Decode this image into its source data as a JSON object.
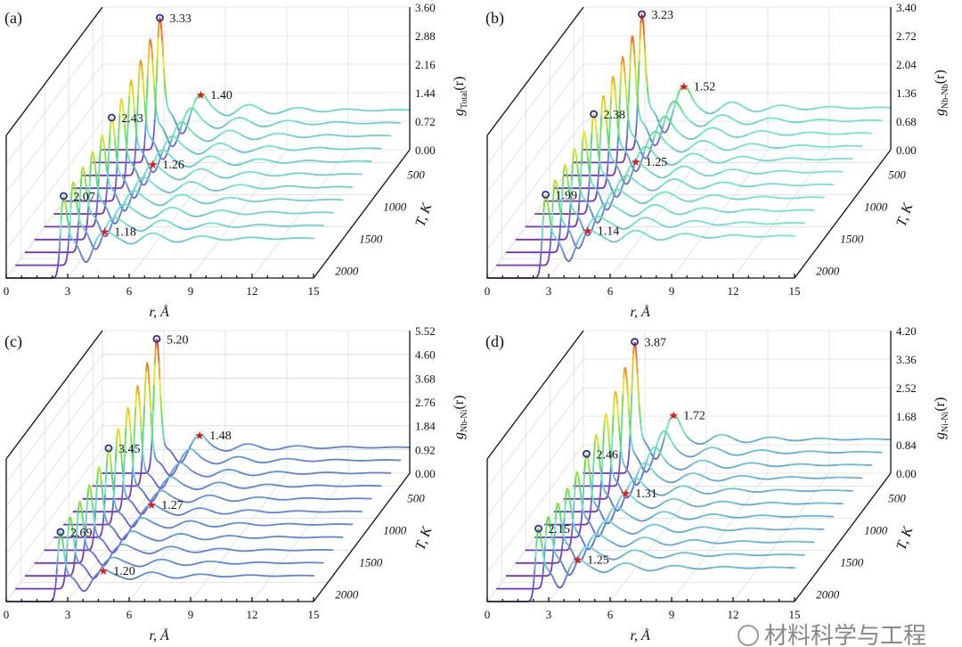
{
  "chart_data": [
    {
      "type": "line",
      "panel_label": "(a)",
      "ylabel_main": "g",
      "ylabel_sub": "Total",
      "ylabel_tail": "(r)",
      "xlabel": "r, Å",
      "zlabel": "T, K",
      "xlim": [
        0,
        15
      ],
      "xticks": [
        0,
        3,
        6,
        9,
        12,
        15
      ],
      "ylim": [
        0,
        3.6
      ],
      "yticks": [
        "0.00",
        "0.72",
        "1.44",
        "2.16",
        "2.88",
        "3.60"
      ],
      "T_ticks": [
        500,
        1000,
        1500,
        2000
      ],
      "T_range": [
        300,
        2300
      ],
      "T": [
        300,
        500,
        700,
        900,
        1100,
        1300,
        1500,
        1700,
        1900,
        2100,
        2300
      ],
      "first_peak": {
        "r": 2.8,
        "labels": [
          "3.33",
          "2.43",
          "2.07"
        ],
        "T_at": [
          300,
          1300,
          2300
        ]
      },
      "second_peak": {
        "r": 4.8,
        "labels": [
          "1.40",
          "1.26",
          "1.18"
        ],
        "T_at": [
          300,
          1300,
          2300
        ]
      }
    },
    {
      "type": "line",
      "panel_label": "(b)",
      "ylabel_main": "g",
      "ylabel_sub": "Nb-Nb",
      "ylabel_tail": "(r)",
      "xlabel": "r, Å",
      "zlabel": "T, K",
      "xlim": [
        0,
        15
      ],
      "xticks": [
        0,
        3,
        6,
        9,
        12,
        15
      ],
      "ylim": [
        0,
        3.4
      ],
      "yticks": [
        "0.00",
        "0.68",
        "1.36",
        "2.04",
        "2.72",
        "3.40"
      ],
      "T_ticks": [
        500,
        1000,
        1500,
        2000
      ],
      "T_range": [
        300,
        2300
      ],
      "T": [
        300,
        500,
        700,
        900,
        1100,
        1300,
        1500,
        1700,
        1900,
        2100,
        2300
      ],
      "first_peak": {
        "r": 2.85,
        "labels": [
          "3.23",
          "2.38",
          "1.99"
        ],
        "T_at": [
          300,
          1300,
          2300
        ]
      },
      "second_peak": {
        "r": 4.9,
        "labels": [
          "1.52",
          "1.25",
          "1.14"
        ],
        "T_at": [
          300,
          1300,
          2300
        ]
      }
    },
    {
      "type": "line",
      "panel_label": "(c)",
      "ylabel_main": "g",
      "ylabel_sub": "Nb-Ni",
      "ylabel_tail": "(r)",
      "xlabel": "r, Å",
      "zlabel": "T, K",
      "xlim": [
        0,
        15
      ],
      "xticks": [
        0,
        3,
        6,
        9,
        12,
        15
      ],
      "ylim": [
        0,
        5.52
      ],
      "yticks": [
        "0.00",
        "0.92",
        "1.84",
        "2.76",
        "3.68",
        "4.60",
        "5.52"
      ],
      "T_ticks": [
        500,
        1000,
        1500,
        2000
      ],
      "T_range": [
        300,
        2300
      ],
      "T": [
        300,
        500,
        700,
        900,
        1100,
        1300,
        1500,
        1700,
        1900,
        2100,
        2300
      ],
      "first_peak": {
        "r": 2.65,
        "labels": [
          "5.20",
          "3.45",
          "2.69"
        ],
        "T_at": [
          300,
          1300,
          2300
        ]
      },
      "second_peak": {
        "r": 4.75,
        "labels": [
          "1.48",
          "1.27",
          "1.20"
        ],
        "T_at": [
          300,
          1300,
          2300
        ]
      }
    },
    {
      "type": "line",
      "panel_label": "(d)",
      "ylabel_main": "g",
      "ylabel_sub": "Ni-Ni",
      "ylabel_tail": "(r)",
      "xlabel": "r, Å",
      "zlabel": "T, K",
      "xlim": [
        0,
        15
      ],
      "xticks": [
        0,
        3,
        6,
        9,
        12,
        15
      ],
      "ylim": [
        0,
        4.2
      ],
      "yticks": [
        "0.00",
        "0.84",
        "1.68",
        "2.52",
        "3.36",
        "4.20"
      ],
      "T_ticks": [
        500,
        1000,
        1500,
        2000
      ],
      "T_range": [
        300,
        2300
      ],
      "T": [
        300,
        500,
        700,
        900,
        1100,
        1300,
        1500,
        1700,
        1900,
        2100,
        2300
      ],
      "first_peak": {
        "r": 2.5,
        "labels": [
          "3.87",
          "2.46",
          "2.15"
        ],
        "T_at": [
          300,
          1300,
          2300
        ]
      },
      "second_peak": {
        "r": 4.4,
        "labels": [
          "1.72",
          "1.31",
          "1.25"
        ],
        "T_at": [
          300,
          1300,
          2300
        ]
      }
    }
  ],
  "colors": {
    "circle": "#2a2aa8",
    "star": "#e01818",
    "grid": "#dcdcdc",
    "colormap": [
      "#7a2fc0",
      "#5a86e0",
      "#6fe6d2",
      "#4fe04a",
      "#f0e41c",
      "#f08a1e",
      "#e01e1e"
    ]
  },
  "watermark": "材料科学与工程"
}
